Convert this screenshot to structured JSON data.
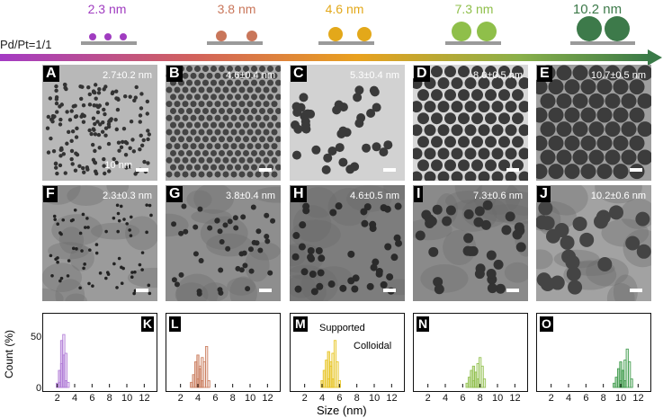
{
  "header": {
    "ratio_label": "Pd/Pt=1/1",
    "sizes": [
      {
        "label": "2.3 nm",
        "color": "#a03cc0"
      },
      {
        "label": "3.8 nm",
        "color": "#c9765a"
      },
      {
        "label": "4.6 nm",
        "color": "#e3a81a"
      },
      {
        "label": "7.3 nm",
        "color": "#8fbf4a"
      },
      {
        "label": "10.2 nm",
        "color": "#3d7a4a"
      }
    ]
  },
  "colloidal_row": [
    {
      "letter": "A",
      "measurement": "2.7±0.2 nm",
      "scalebar": "10 nm"
    },
    {
      "letter": "B",
      "measurement": "4.6±0.4 nm"
    },
    {
      "letter": "C",
      "measurement": "5.3±0.4 nm"
    },
    {
      "letter": "D",
      "measurement": "8.0±0.5 nm"
    },
    {
      "letter": "E",
      "measurement": "10.7±0.5 nm"
    }
  ],
  "supported_row": [
    {
      "letter": "F",
      "measurement": "2.3±0.3 nm"
    },
    {
      "letter": "G",
      "measurement": "3.8±0.4 nm"
    },
    {
      "letter": "H",
      "measurement": "4.6±0.5 nm"
    },
    {
      "letter": "I",
      "measurement": "7.3±0.6 nm"
    },
    {
      "letter": "J",
      "measurement": "10.2±0.6 nm"
    }
  ],
  "histograms": {
    "ylabel": "Count (%)",
    "xlabel": "Size (nm)",
    "yticks": [
      "0",
      "50"
    ],
    "xticks": [
      "2",
      "4",
      "6",
      "8",
      "10",
      "12"
    ],
    "annotations": {
      "supported": "Supported",
      "colloidal": "Colloidal"
    },
    "panels": [
      {
        "letter": "K",
        "color": "#b07ad6"
      },
      {
        "letter": "L",
        "color": "#c97a5a"
      },
      {
        "letter": "M",
        "color": "#e6c21a"
      },
      {
        "letter": "N",
        "color": "#8fbf4a"
      },
      {
        "letter": "O",
        "color": "#3d9a4a"
      }
    ]
  },
  "chart_data": [
    {
      "type": "bar",
      "title": "",
      "ylabel": "Count (%)",
      "xlabel": "Size (nm)",
      "xlim": [
        1,
        13
      ],
      "ylim": [
        0,
        80
      ],
      "series": [
        {
          "name": "Supported",
          "x": [
            2.0,
            2.25,
            2.5,
            2.75,
            3.0
          ],
          "values": [
            5,
            20,
            55,
            38,
            8
          ]
        },
        {
          "name": "Colloidal",
          "x": [
            2.25,
            2.5,
            2.75,
            3.0,
            3.25
          ],
          "values": [
            6,
            28,
            62,
            40,
            6
          ]
        }
      ]
    },
    {
      "type": "bar",
      "title": "",
      "ylabel": "Count (%)",
      "xlabel": "Size (nm)",
      "xlim": [
        1,
        13
      ],
      "ylim": [
        0,
        80
      ],
      "series": [
        {
          "name": "Supported",
          "x": [
            3.25,
            3.5,
            3.75,
            4.0,
            4.25,
            4.5
          ],
          "values": [
            6,
            15,
            30,
            38,
            22,
            8
          ]
        },
        {
          "name": "Colloidal",
          "x": [
            4.0,
            4.25,
            4.5,
            4.75,
            5.0,
            5.25
          ],
          "values": [
            10,
            25,
            35,
            30,
            48,
            8
          ]
        }
      ]
    },
    {
      "type": "bar",
      "title": "",
      "ylabel": "Count (%)",
      "xlabel": "Size (nm)",
      "xlim": [
        1,
        13
      ],
      "ylim": [
        0,
        80
      ],
      "series": [
        {
          "name": "Supported",
          "x": [
            4.0,
            4.25,
            4.5,
            4.75,
            5.0,
            5.25
          ],
          "values": [
            8,
            20,
            32,
            42,
            30,
            10
          ]
        },
        {
          "name": "Colloidal",
          "x": [
            4.75,
            5.0,
            5.25,
            5.5,
            5.75,
            6.0
          ],
          "values": [
            10,
            25,
            40,
            55,
            30,
            8
          ]
        }
      ]
    },
    {
      "type": "bar",
      "title": "",
      "ylabel": "Count (%)",
      "xlabel": "Size (nm)",
      "xlim": [
        1,
        13
      ],
      "ylim": [
        0,
        80
      ],
      "series": [
        {
          "name": "Supported",
          "x": [
            6.5,
            6.75,
            7.0,
            7.25,
            7.5,
            7.75
          ],
          "values": [
            5,
            12,
            20,
            25,
            18,
            10
          ]
        },
        {
          "name": "Colloidal",
          "x": [
            7.25,
            7.5,
            7.75,
            8.0,
            8.25,
            8.5
          ],
          "values": [
            8,
            18,
            28,
            35,
            25,
            10
          ]
        }
      ]
    },
    {
      "type": "bar",
      "title": "",
      "ylabel": "Count (%)",
      "xlabel": "Size (nm)",
      "xlim": [
        1,
        13
      ],
      "ylim": [
        0,
        80
      ],
      "series": [
        {
          "name": "Supported",
          "x": [
            9.25,
            9.5,
            9.75,
            10.0,
            10.25,
            10.5
          ],
          "values": [
            5,
            12,
            22,
            30,
            20,
            8
          ]
        },
        {
          "name": "Colloidal",
          "x": [
            10.0,
            10.25,
            10.5,
            10.75,
            11.0,
            11.25
          ],
          "values": [
            8,
            20,
            32,
            45,
            30,
            10
          ]
        }
      ]
    }
  ]
}
